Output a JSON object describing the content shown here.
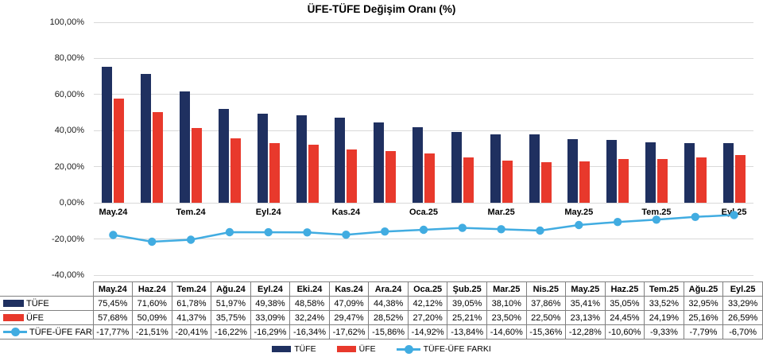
{
  "title": "ÜFE-TÜFE Değişim Oranı (%)",
  "chart_data": {
    "type": "bar",
    "subtype": "grouped bars with line overlay",
    "title": "ÜFE-TÜFE Değişim Oranı (%)",
    "categories": [
      "May.24",
      "Haz.24",
      "Tem.24",
      "Ağu.24",
      "Eyl.24",
      "Eki.24",
      "Kas.24",
      "Ara.24",
      "Oca.25",
      "Şub.25",
      "Mar.25",
      "Nis.25",
      "May.25",
      "Haz.25",
      "Tem.25",
      "Ağu.25",
      "Eyl.25"
    ],
    "series": [
      {
        "name": "TÜFE",
        "type": "bar",
        "color": "#1F3060",
        "values": [
          75.45,
          71.6,
          61.78,
          51.97,
          49.38,
          48.58,
          47.09,
          44.38,
          42.12,
          39.05,
          38.1,
          37.86,
          35.41,
          35.05,
          33.52,
          32.95,
          33.29
        ]
      },
      {
        "name": "ÜFE",
        "type": "bar",
        "color": "#E8392C",
        "values": [
          57.68,
          50.09,
          41.37,
          35.75,
          33.09,
          32.24,
          29.47,
          28.52,
          27.2,
          25.21,
          23.5,
          22.5,
          23.13,
          24.45,
          24.19,
          25.16,
          26.59
        ]
      },
      {
        "name": "TÜFE-ÜFE FARKI",
        "type": "line",
        "color": "#41ACE1",
        "values": [
          -17.77,
          -21.51,
          -20.41,
          -16.22,
          -16.29,
          -16.34,
          -17.62,
          -15.86,
          -14.92,
          -13.84,
          -14.6,
          -15.36,
          -12.28,
          -10.6,
          -9.33,
          -7.79,
          -6.7
        ]
      }
    ],
    "ylim": [
      -40,
      100
    ],
    "y_ticks": [
      100,
      80,
      60,
      40,
      20,
      0,
      -20,
      -40
    ],
    "y_tick_labels": [
      "100,00%",
      "80,00%",
      "60,00%",
      "40,00%",
      "20,00%",
      "0,00%",
      "-20,00%",
      "-40,00%"
    ],
    "x_tick_labels": [
      "May.24",
      "Tem.24",
      "Eyl.24",
      "Kas.24",
      "Oca.25",
      "Mar.25",
      "May.25",
      "Tem.25",
      "Eyl.25"
    ],
    "x_tick_every": 2,
    "grid": true,
    "legend_position": "bottom"
  },
  "table": {
    "corner_label": "",
    "columns": [
      "May.24",
      "Haz.24",
      "Tem.24",
      "Ağu.24",
      "Eyl.24",
      "Eki.24",
      "Kas.24",
      "Ara.24",
      "Oca.25",
      "Şub.25",
      "Mar.25",
      "Nis.25",
      "May.25",
      "Haz.25",
      "Tem.25",
      "Ağu.25",
      "Eyl.25"
    ],
    "rows": [
      {
        "label": "TÜFE",
        "key": "bar",
        "color": "#1F3060",
        "values": [
          "75,45%",
          "71,60%",
          "61,78%",
          "51,97%",
          "49,38%",
          "48,58%",
          "47,09%",
          "44,38%",
          "42,12%",
          "39,05%",
          "38,10%",
          "37,86%",
          "35,41%",
          "35,05%",
          "33,52%",
          "32,95%",
          "33,29%"
        ]
      },
      {
        "label": "ÜFE",
        "key": "bar",
        "color": "#E8392C",
        "values": [
          "57,68%",
          "50,09%",
          "41,37%",
          "35,75%",
          "33,09%",
          "32,24%",
          "29,47%",
          "28,52%",
          "27,20%",
          "25,21%",
          "23,50%",
          "22,50%",
          "23,13%",
          "24,45%",
          "24,19%",
          "25,16%",
          "26,59%"
        ]
      },
      {
        "label": "TÜFE-ÜFE FARKI",
        "key": "line",
        "color": "#41ACE1",
        "values": [
          "-17,77%",
          "-21,51%",
          "-20,41%",
          "-16,22%",
          "-16,29%",
          "-16,34%",
          "-17,62%",
          "-15,86%",
          "-14,92%",
          "-13,84%",
          "-14,60%",
          "-15,36%",
          "-12,28%",
          "-10,60%",
          "-9,33%",
          "-7,79%",
          "-6,70%"
        ]
      }
    ]
  },
  "legend": {
    "items": [
      {
        "label": "TÜFE",
        "key": "bar",
        "color": "#1F3060"
      },
      {
        "label": "ÜFE",
        "key": "bar",
        "color": "#E8392C"
      },
      {
        "label": "TÜFE-ÜFE FARKI",
        "key": "line",
        "color": "#41ACE1"
      }
    ]
  },
  "colors": {
    "tufe_bar": "#1F3060",
    "ufe_bar": "#E8392C",
    "fark_line": "#41ACE1",
    "gridline": "#D9D9D9",
    "table_border": "#808080"
  }
}
